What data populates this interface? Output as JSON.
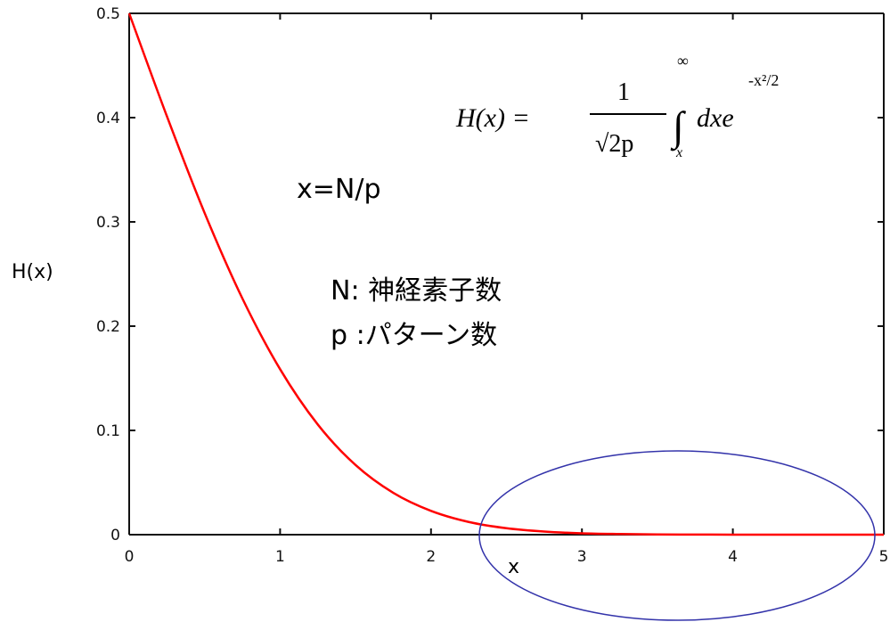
{
  "chart_data": {
    "type": "line",
    "x": [
      0,
      0.25,
      0.5,
      0.75,
      1,
      1.25,
      1.5,
      1.75,
      2,
      2.25,
      2.5,
      2.75,
      3,
      3.25,
      3.5,
      3.75,
      4,
      4.25,
      4.5,
      4.75,
      5
    ],
    "series": [
      {
        "values": [
          0.5,
          0.4013,
          0.3085,
          0.2266,
          0.1587,
          0.1056,
          0.0668,
          0.0401,
          0.0228,
          0.0122,
          0.0062,
          0.003,
          0.0013,
          0.0006,
          0.0002,
          0.0001,
          0.0,
          0.0,
          0.0,
          0.0,
          0.0
        ],
        "color": "#ff0000"
      }
    ],
    "xlim": [
      0,
      5
    ],
    "ylim": [
      0,
      0.5
    ],
    "x_ticks": [
      "0",
      "1",
      "2",
      "3",
      "4",
      "5"
    ],
    "y_ticks": [
      "0",
      "0.1",
      "0.2",
      "0.3",
      "0.4",
      "0.5"
    ],
    "xlabel": "x",
    "ylabel": "H(x)",
    "grid": false,
    "annotations": {
      "ratio": "x=N/p",
      "n_def": "N: 神経素子数",
      "p_def": "p :パターン数"
    },
    "formula": {
      "lhs": "H(x) =",
      "numerator": "1",
      "denominator": "√2p",
      "integral_upper": "∞",
      "integral_lower": "x",
      "integrand": "dxe",
      "exponent": "-x²/2"
    },
    "highlight_color": "#3333aa"
  }
}
